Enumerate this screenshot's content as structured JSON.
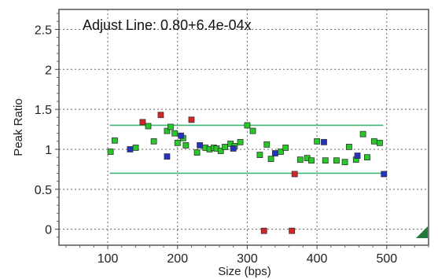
{
  "chart_data": {
    "type": "scatter",
    "title": "Adjust Line: 0.80+6.4e-04x",
    "xlabel": "Size (bps)",
    "ylabel": "Peak Ratio",
    "xlim": [
      30,
      560
    ],
    "ylim": [
      -0.2,
      2.75
    ],
    "x_ticks": [
      100,
      200,
      300,
      400,
      500
    ],
    "x_tick_labels": [
      "100",
      "200",
      "300",
      "400",
      "500"
    ],
    "y_ticks": [
      0,
      0.5,
      1,
      1.5,
      2,
      2.5
    ],
    "y_tick_labels": [
      "0",
      "0.5",
      "1",
      "1.5",
      "2",
      "2.5"
    ],
    "grid": true,
    "reference_lines": [
      {
        "y": 1.3,
        "x_range": [
          103,
          495
        ],
        "color": "#3cb878"
      },
      {
        "y": 0.7,
        "x_range": [
          103,
          495
        ],
        "color": "#3cb878"
      }
    ],
    "series": [
      {
        "color": "#22cc22",
        "points": [
          [
            104,
            0.97
          ],
          [
            110,
            1.11
          ],
          [
            140,
            1.02
          ],
          [
            158,
            1.29
          ],
          [
            166,
            1.1
          ],
          [
            185,
            1.23
          ],
          [
            190,
            1.28
          ],
          [
            196,
            1.2
          ],
          [
            200,
            1.08
          ],
          [
            208,
            1.14
          ],
          [
            212,
            1.05
          ],
          [
            228,
            0.96
          ],
          [
            240,
            1.02
          ],
          [
            246,
            1.0
          ],
          [
            252,
            1.02
          ],
          [
            256,
            1.01
          ],
          [
            262,
            0.98
          ],
          [
            268,
            1.03
          ],
          [
            276,
            1.07
          ],
          [
            282,
            1.04
          ],
          [
            290,
            1.09
          ],
          [
            300,
            1.3
          ],
          [
            308,
            1.23
          ],
          [
            318,
            0.93
          ],
          [
            328,
            1.06
          ],
          [
            334,
            0.88
          ],
          [
            348,
            0.97
          ],
          [
            355,
            1.02
          ],
          [
            376,
            0.87
          ],
          [
            386,
            0.89
          ],
          [
            392,
            0.86
          ],
          [
            400,
            1.1
          ],
          [
            412,
            0.86
          ],
          [
            428,
            0.86
          ],
          [
            440,
            0.84
          ],
          [
            446,
            1.03
          ],
          [
            456,
            0.87
          ],
          [
            466,
            1.19
          ],
          [
            472,
            0.9
          ],
          [
            482,
            1.1
          ],
          [
            490,
            1.08
          ]
        ]
      },
      {
        "color": "#2233cc",
        "points": [
          [
            132,
            1.0
          ],
          [
            185,
            0.91
          ],
          [
            205,
            1.17
          ],
          [
            232,
            1.05
          ],
          [
            280,
            1.01
          ],
          [
            340,
            0.95
          ],
          [
            410,
            1.09
          ],
          [
            458,
            0.92
          ],
          [
            496,
            0.69
          ]
        ]
      },
      {
        "color": "#dd2222",
        "points": [
          [
            150,
            1.34
          ],
          [
            176,
            1.43
          ],
          [
            220,
            1.37
          ],
          [
            324,
            -0.02
          ],
          [
            364,
            -0.02
          ],
          [
            368,
            0.69
          ]
        ]
      }
    ]
  }
}
